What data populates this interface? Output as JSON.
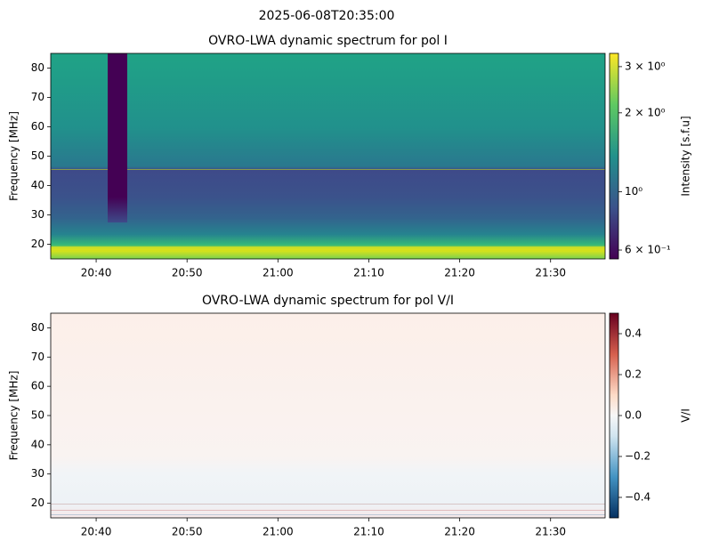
{
  "suptitle": "2025-06-08T20:35:00",
  "chart_data": [
    {
      "type": "heatmap",
      "title": "OVRO-LWA dynamic spectrum for pol I",
      "ylabel": "Frequency [MHz]",
      "xlim": [
        "20:35",
        "21:36"
      ],
      "xticks": [
        "20:40",
        "20:50",
        "21:00",
        "21:10",
        "21:20",
        "21:30"
      ],
      "ylim": [
        15,
        85
      ],
      "yticks": [
        20,
        30,
        40,
        50,
        60,
        70,
        80
      ],
      "colorbar": {
        "label": "Intensity [s.f.u]",
        "scale": "log",
        "colormap": "viridis",
        "clim": [
          0.555,
          3.37
        ],
        "ticks": [
          {
            "value": 0.6,
            "label": "6 × 10⁻¹"
          },
          {
            "value": 1,
            "label": "10⁰"
          },
          {
            "value": 2,
            "label": "2 × 10⁰"
          },
          {
            "value": 3,
            "label": "3 × 10⁰"
          }
        ]
      }
    },
    {
      "type": "heatmap",
      "title": "OVRO-LWA dynamic spectrum for pol V/I",
      "ylabel": "Frequency [MHz]",
      "xlim": [
        "20:35",
        "21:36"
      ],
      "xticks": [
        "20:40",
        "20:50",
        "21:00",
        "21:10",
        "21:20",
        "21:30"
      ],
      "ylim": [
        15,
        85
      ],
      "yticks": [
        20,
        30,
        40,
        50,
        60,
        70,
        80
      ],
      "colorbar": {
        "label": "V/I",
        "scale": "linear",
        "colormap": "RdBu_r",
        "clim": [
          -0.5,
          0.5
        ],
        "ticks": [
          {
            "value": -0.4,
            "label": "−0.4"
          },
          {
            "value": -0.2,
            "label": "−0.2"
          },
          {
            "value": 0,
            "label": "0.0"
          },
          0.2,
          0.4
        ]
      }
    }
  ]
}
